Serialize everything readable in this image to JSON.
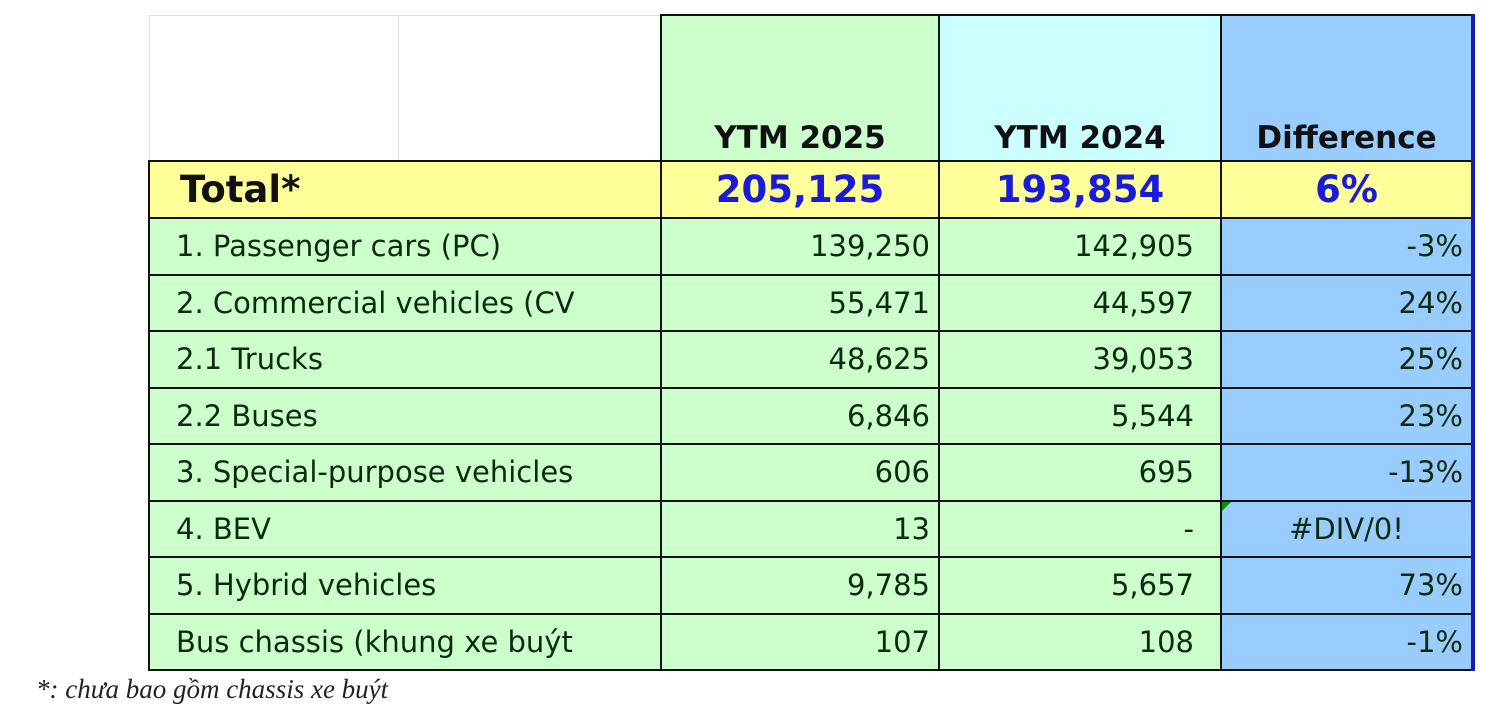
{
  "headers": {
    "ytm_2025": "YTM 2025",
    "ytm_2024": "YTM 2024",
    "difference": "Difference"
  },
  "total": {
    "label": "Total*",
    "ytm_2025": "205,125",
    "ytm_2024": "193,854",
    "difference": "6%"
  },
  "rows": [
    {
      "label": "1. Passenger cars (PC)",
      "ytm_2025": "139,250",
      "ytm_2024": "142,905",
      "difference": "-3%"
    },
    {
      "label": "2. Commercial vehicles (CV",
      "ytm_2025": "55,471",
      "ytm_2024": "44,597",
      "difference": "24%"
    },
    {
      "label": "2.1 Trucks",
      "ytm_2025": "48,625",
      "ytm_2024": "39,053",
      "difference": "25%"
    },
    {
      "label": "2.2 Buses",
      "ytm_2025": "6,846",
      "ytm_2024": "5,544",
      "difference": "23%"
    },
    {
      "label": "3. Special-purpose vehicles",
      "ytm_2025": "606",
      "ytm_2024": "695",
      "difference": "-13%"
    },
    {
      "label": "4. BEV",
      "ytm_2025": "13",
      "ytm_2024": "-",
      "difference": "#DIV/0!"
    },
    {
      "label": "5. Hybrid vehicles",
      "ytm_2025": "9,785",
      "ytm_2024": "5,657",
      "difference": "73%"
    },
    {
      "label": "Bus chassis (khung xe buýt",
      "ytm_2025": "107",
      "ytm_2024": "108",
      "difference": "-1%"
    }
  ],
  "footnote": "*: chưa bao gồm chassis xe buýt",
  "colors": {
    "green": "#ccffcc",
    "cyan": "#ccffff",
    "blue": "#99ccff",
    "yellow": "#ffff99",
    "total_text": "#1a1adb"
  }
}
